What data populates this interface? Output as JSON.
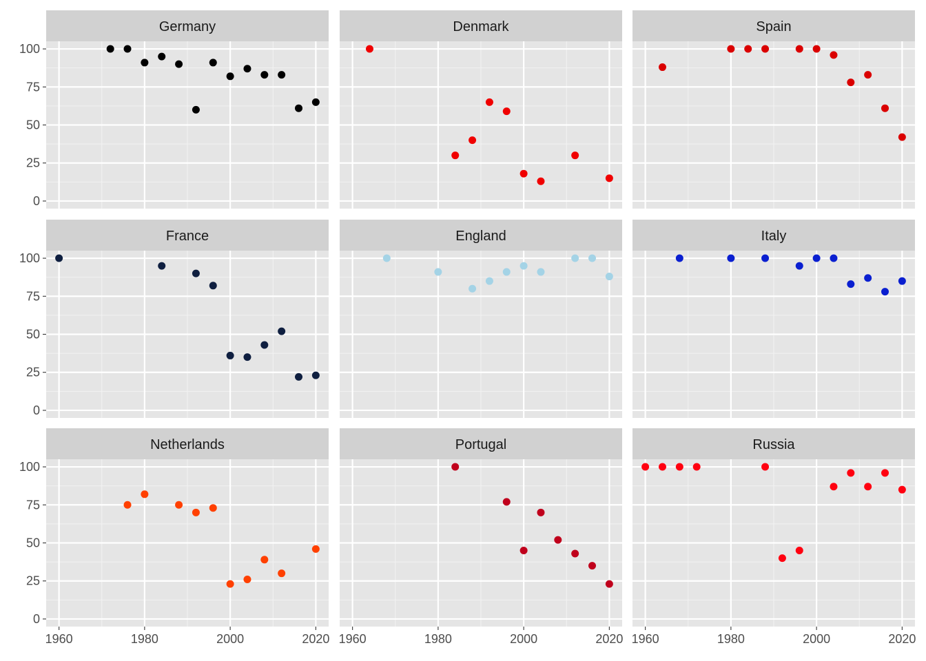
{
  "chart_data": {
    "type": "scatter",
    "layout": "facet-wrap 3x3",
    "title": "",
    "xlabel": "",
    "ylabel": "",
    "xlim": [
      1957,
      2023
    ],
    "ylim": [
      -5,
      105
    ],
    "x_ticks": [
      1960,
      1980,
      2000,
      2020
    ],
    "y_ticks": [
      0,
      25,
      50,
      75,
      100
    ],
    "grid": true,
    "legend": "none",
    "panel_background": "#e5e5e5",
    "strip_background": "#d1d1d1",
    "facets": [
      {
        "name": "Germany",
        "color": "#000000",
        "x": [
          1972,
          1976,
          1980,
          1984,
          1988,
          1992,
          1996,
          2000,
          2004,
          2008,
          2012,
          2016,
          2020
        ],
        "y": [
          100,
          100,
          91,
          95,
          90,
          60,
          91,
          82,
          87,
          83,
          83,
          61,
          65
        ]
      },
      {
        "name": "Denmark",
        "color": "#f00000",
        "x": [
          1964,
          1984,
          1988,
          1992,
          1996,
          2000,
          2004,
          2012,
          2020
        ],
        "y": [
          100,
          30,
          40,
          65,
          59,
          18,
          13,
          30,
          15
        ]
      },
      {
        "name": "Spain",
        "color": "#da0000",
        "x": [
          1964,
          1980,
          1984,
          1988,
          1996,
          2000,
          2004,
          2008,
          2012,
          2016,
          2020
        ],
        "y": [
          88,
          100,
          100,
          100,
          100,
          100,
          96,
          78,
          83,
          61,
          42
        ]
      },
      {
        "name": "France",
        "color": "#0f1f40",
        "x": [
          1960,
          1984,
          1992,
          1996,
          2000,
          2004,
          2008,
          2012,
          2016,
          2020
        ],
        "y": [
          100,
          95,
          90,
          82,
          36,
          35,
          43,
          52,
          22,
          23
        ]
      },
      {
        "name": "England",
        "color": "#a4d3e6",
        "x": [
          1968,
          1980,
          1988,
          1992,
          1996,
          2000,
          2004,
          2012,
          2016,
          2020
        ],
        "y": [
          100,
          91,
          80,
          85,
          91,
          95,
          91,
          100,
          100,
          88
        ]
      },
      {
        "name": "Italy",
        "color": "#0a1fd0",
        "x": [
          1968,
          1980,
          1988,
          1996,
          2000,
          2004,
          2008,
          2012,
          2016,
          2020
        ],
        "y": [
          100,
          100,
          100,
          95,
          100,
          100,
          83,
          87,
          78,
          85
        ]
      },
      {
        "name": "Netherlands",
        "color": "#ff4000",
        "x": [
          1976,
          1980,
          1988,
          1992,
          1996,
          2000,
          2004,
          2008,
          2012,
          2020
        ],
        "y": [
          75,
          82,
          75,
          70,
          73,
          23,
          26,
          39,
          30,
          46
        ]
      },
      {
        "name": "Portugal",
        "color": "#c0001c",
        "x": [
          1984,
          1996,
          2000,
          2004,
          2008,
          2012,
          2016,
          2020
        ],
        "y": [
          100,
          77,
          45,
          70,
          52,
          43,
          35,
          23
        ]
      },
      {
        "name": "Russia",
        "color": "#ff0010",
        "x": [
          1960,
          1964,
          1968,
          1972,
          1988,
          1992,
          1996,
          2004,
          2008,
          2012,
          2016,
          2020
        ],
        "y": [
          100,
          100,
          100,
          100,
          100,
          40,
          45,
          87,
          96,
          87,
          96,
          85
        ]
      }
    ]
  }
}
